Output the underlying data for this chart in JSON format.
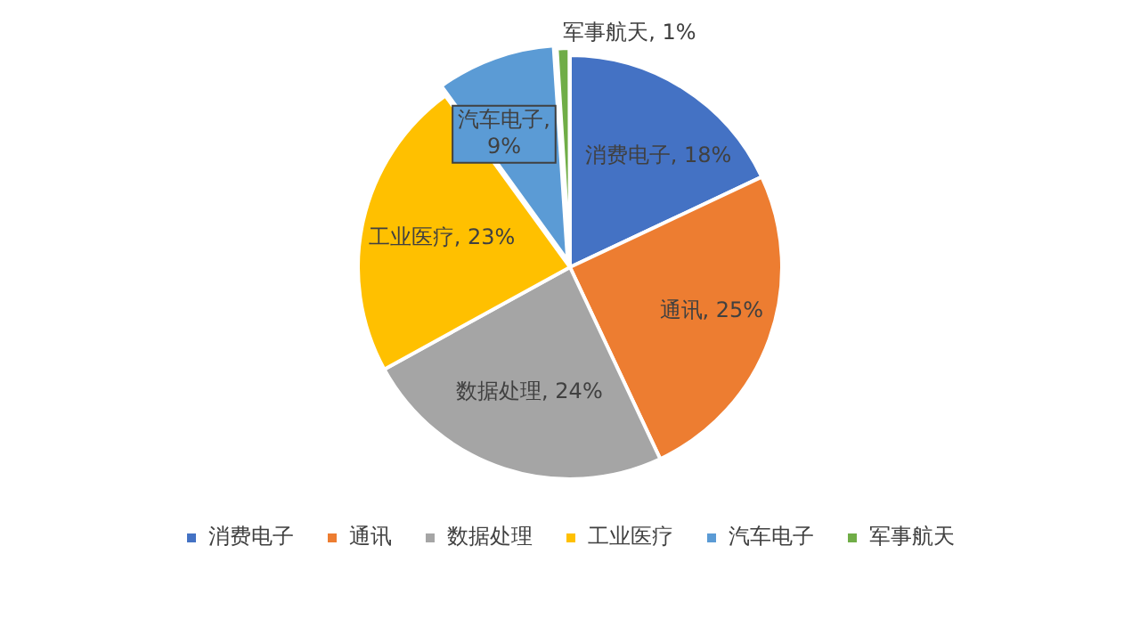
{
  "chart_data": {
    "type": "pie",
    "categories": [
      "消费电子",
      "通讯",
      "数据处理",
      "工业医疗",
      "汽车电子",
      "军事航天"
    ],
    "values": [
      18,
      25,
      24,
      23,
      9,
      1
    ],
    "colors": [
      "#4472c4",
      "#ed7d31",
      "#a5a5a5",
      "#ffc000",
      "#5b9bd5",
      "#70ad47"
    ],
    "value_labels": [
      "消费电子, 18%",
      "通讯, 25%",
      "数据处理, 24%",
      "工业医疗, 23%",
      "汽车电子, 9%",
      "军事航天, 1%"
    ],
    "legend": "bottom"
  }
}
